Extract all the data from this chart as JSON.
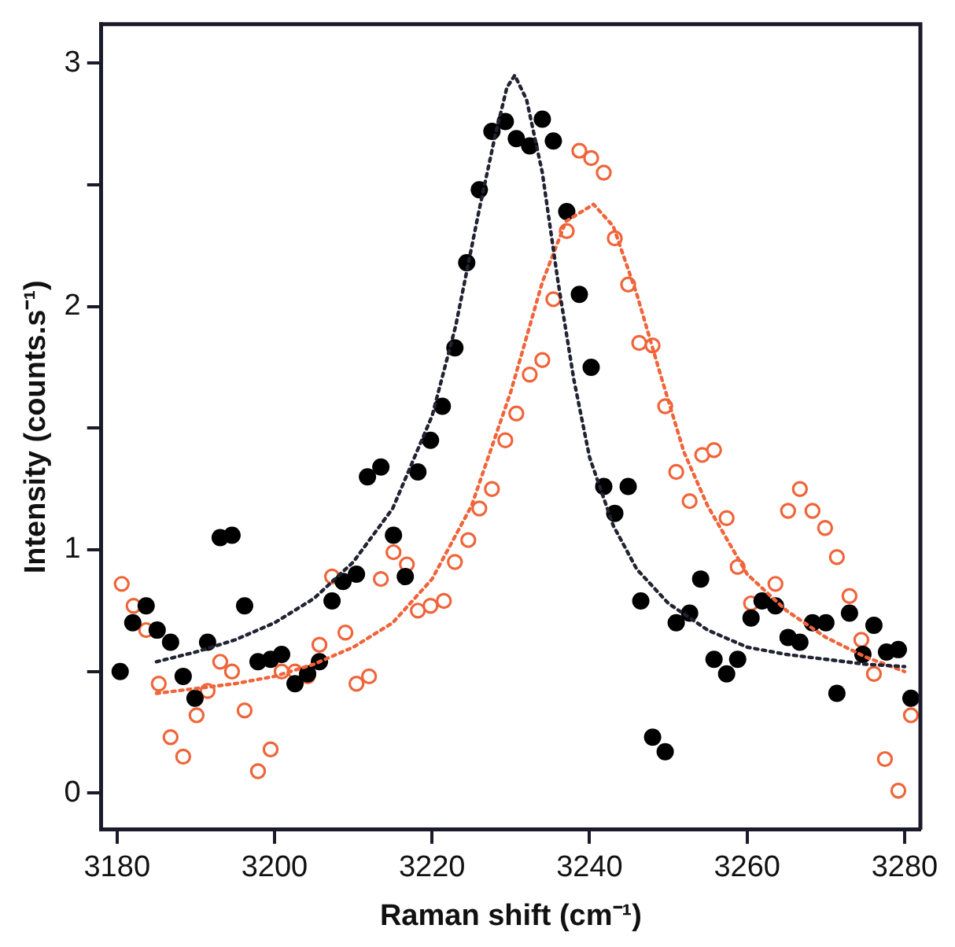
{
  "chart_data": {
    "type": "scatter",
    "xlabel": "Raman shift (cm⁻¹)",
    "ylabel": "Intensity (counts.s⁻¹)",
    "xlim": [
      3178,
      3282
    ],
    "ylim": [
      -0.15,
      3.16
    ],
    "xticks": [
      3180,
      3200,
      3220,
      3240,
      3260,
      3280
    ],
    "yticks": [
      0,
      {
        "value": 0.5,
        "label": null
      },
      1,
      {
        "value": 1.5,
        "label": null
      },
      2,
      {
        "value": 2.5,
        "label": null
      },
      3
    ],
    "grid": false,
    "legend": false,
    "series": [
      {
        "type": "scatter",
        "color": "#000000",
        "marker": "circle",
        "x": [
          3180.4,
          3182,
          3183.7,
          3185.1,
          3186.8,
          3188.4,
          3189.9,
          3191.5,
          3193.1,
          3194.6,
          3196.2,
          3197.9,
          3199.5,
          3200.9,
          3202.6,
          3204.2,
          3205.7,
          3207.3,
          3208.7,
          3210.4,
          3211.8,
          3213.5,
          3215.1,
          3216.6,
          3218.2,
          3219.8,
          3221.3,
          3222.9,
          3224.4,
          3226,
          3227.6,
          3229.3,
          3230.7,
          3232.4,
          3234,
          3235.4,
          3237.1,
          3238.7,
          3240.2,
          3241.8,
          3243.2,
          3244.9,
          3246.5,
          3248,
          3249.6,
          3251,
          3252.7,
          3254.1,
          3255.8,
          3257.4,
          3258.8,
          3260.5,
          3261.9,
          3263.6,
          3265.2,
          3266.7,
          3268.3,
          3270,
          3271.4,
          3273,
          3274.7,
          3276.1,
          3277.7,
          3279.2,
          3280.8
        ],
        "values": [
          0.5,
          0.7,
          0.77,
          0.67,
          0.62,
          0.48,
          0.39,
          0.62,
          1.05,
          1.06,
          0.77,
          0.54,
          0.55,
          0.57,
          0.45,
          0.49,
          0.54,
          0.79,
          0.87,
          0.9,
          1.3,
          1.34,
          1.06,
          0.89,
          1.32,
          1.45,
          1.59,
          1.83,
          2.18,
          2.48,
          2.72,
          2.76,
          2.69,
          2.66,
          2.77,
          2.68,
          2.39,
          2.05,
          1.75,
          1.26,
          1.15,
          1.26,
          0.79,
          0.23,
          0.17,
          0.7,
          0.74,
          0.88,
          0.55,
          0.49,
          0.55,
          0.72,
          0.79,
          0.77,
          0.64,
          0.62,
          0.7,
          0.7,
          0.41,
          0.74,
          0.57,
          0.69,
          0.58,
          0.59,
          0.39
        ]
      },
      {
        "type": "scatter",
        "color": "#f0643a",
        "marker": "circle",
        "x": [
          3180.6,
          3182.1,
          3183.7,
          3185.3,
          3186.8,
          3188.4,
          3190.1,
          3191.5,
          3193.1,
          3194.6,
          3196.2,
          3197.9,
          3199.5,
          3200.9,
          3202.6,
          3204.2,
          3205.7,
          3207.3,
          3209,
          3210.4,
          3212,
          3213.5,
          3215.1,
          3216.8,
          3218.2,
          3219.8,
          3221.5,
          3222.9,
          3224.6,
          3226,
          3227.6,
          3229.3,
          3230.7,
          3232.4,
          3234,
          3235.4,
          3237.1,
          3238.7,
          3240.2,
          3241.8,
          3243.2,
          3244.9,
          3246.3,
          3248,
          3249.6,
          3251,
          3252.7,
          3254.3,
          3255.8,
          3257.4,
          3258.8,
          3260.5,
          3263.6,
          3265.2,
          3266.7,
          3268.3,
          3269.9,
          3271.4,
          3273,
          3274.5,
          3276.1,
          3277.5,
          3279.2,
          3280.8
        ],
        "values": [
          0.86,
          0.77,
          0.67,
          0.45,
          0.23,
          0.15,
          0.32,
          0.42,
          0.54,
          0.5,
          0.34,
          0.09,
          0.18,
          0.5,
          0.5,
          0.48,
          0.61,
          0.89,
          0.66,
          0.45,
          0.48,
          0.88,
          0.99,
          0.94,
          0.75,
          0.77,
          0.79,
          0.95,
          1.04,
          1.17,
          1.25,
          1.45,
          1.56,
          1.72,
          1.78,
          2.03,
          2.31,
          2.64,
          2.61,
          2.55,
          2.28,
          2.09,
          1.85,
          1.84,
          1.59,
          1.32,
          1.2,
          1.39,
          1.41,
          1.13,
          0.93,
          0.78,
          0.86,
          1.16,
          1.25,
          1.16,
          1.09,
          0.97,
          0.81,
          0.63,
          0.49,
          0.14,
          0.01,
          0.32
        ]
      },
      {
        "type": "line",
        "color": "#222233",
        "marker": "none",
        "line_style": "dotted",
        "x": [
          3185,
          3190,
          3195,
          3200,
          3205,
          3210,
          3215,
          3220,
          3223,
          3226,
          3228,
          3229.5,
          3230.5,
          3232,
          3234,
          3236,
          3238,
          3240,
          3243,
          3246,
          3250,
          3255,
          3260,
          3265,
          3270,
          3275,
          3280
        ],
        "values": [
          0.54,
          0.58,
          0.63,
          0.7,
          0.8,
          0.95,
          1.17,
          1.55,
          1.92,
          2.4,
          2.7,
          2.9,
          2.95,
          2.85,
          2.55,
          2.1,
          1.7,
          1.38,
          1.1,
          0.92,
          0.78,
          0.67,
          0.6,
          0.57,
          0.55,
          0.53,
          0.52
        ]
      },
      {
        "type": "line",
        "color": "#f0643a",
        "marker": "none",
        "line_style": "dotted",
        "x": [
          3185,
          3190,
          3195,
          3200,
          3205,
          3210,
          3215,
          3220,
          3225,
          3230,
          3234,
          3237,
          3240.5,
          3243,
          3246,
          3249,
          3252,
          3255,
          3260,
          3265,
          3270,
          3275,
          3280
        ],
        "values": [
          0.41,
          0.43,
          0.45,
          0.48,
          0.53,
          0.6,
          0.7,
          0.88,
          1.18,
          1.65,
          2.1,
          2.35,
          2.42,
          2.33,
          2.05,
          1.72,
          1.4,
          1.18,
          0.9,
          0.75,
          0.64,
          0.56,
          0.5
        ]
      }
    ]
  }
}
